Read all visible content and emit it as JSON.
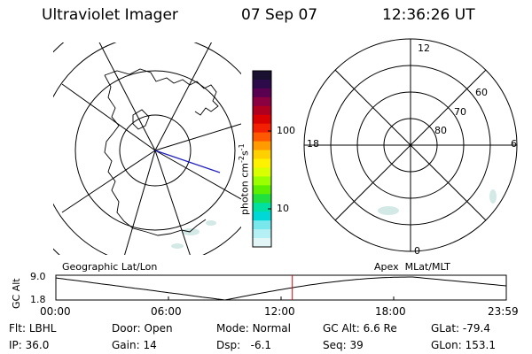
{
  "header": {
    "instrument": "Ultraviolet Imager",
    "date": "07 Sep 07",
    "time": "12:36:26 UT"
  },
  "colorbar": {
    "label": "photon cm",
    "label_sup1": "-2",
    "label_s": "s",
    "label_sup2": "-1",
    "ticks": [
      "100",
      "10"
    ],
    "colors": [
      "#1a1030",
      "#2d0a4a",
      "#5a0050",
      "#8a0040",
      "#b00020",
      "#d80000",
      "#f22000",
      "#ff5800",
      "#ff9a00",
      "#ffd000",
      "#fff200",
      "#d9ff00",
      "#9cff00",
      "#5cf000",
      "#20e040",
      "#00e0a0",
      "#00d8d8",
      "#78e8ec",
      "#b4f0f4",
      "#e2f6f8"
    ]
  },
  "left_map": {
    "caption": "Geographic Lat/Lon"
  },
  "right_map": {
    "caption": "Apex  MLat/MLT",
    "mlt_labels": [
      "12",
      "18",
      "6",
      "0"
    ],
    "lat_labels": [
      "60",
      "70",
      "80"
    ]
  },
  "altitude_plot": {
    "ylabel": "GC Alt",
    "ymax": "9.0",
    "ymin": "1.8",
    "x_ticks": [
      "00:00",
      "06:00",
      "12:00",
      "18:00",
      "23:59"
    ],
    "marker_hour": 12.6
  },
  "footer": {
    "filter_label": "Flt:",
    "filter_value": "LBHL",
    "ip_label": "IP:",
    "ip_value": "36.0",
    "door_label": "Door:",
    "door_value": "Open",
    "gain_label": "Gain:",
    "gain_value": "14",
    "mode_label": "Mode:",
    "mode_value": "Normal",
    "dsp_label": "Dsp:",
    "dsp_value": "-6.1",
    "gcalt_label": "GC Alt:",
    "gcalt_value": "6.6 Re",
    "seq_label": "Seq:",
    "seq_value": "39",
    "glat_label": "GLat:",
    "glat_value": "-79.4",
    "glon_label": "GLon:",
    "glon_value": "153.1"
  },
  "colors": {
    "marker": "#e00000",
    "trajectory": "#2020c0",
    "aurora": "#c8e4e0"
  }
}
